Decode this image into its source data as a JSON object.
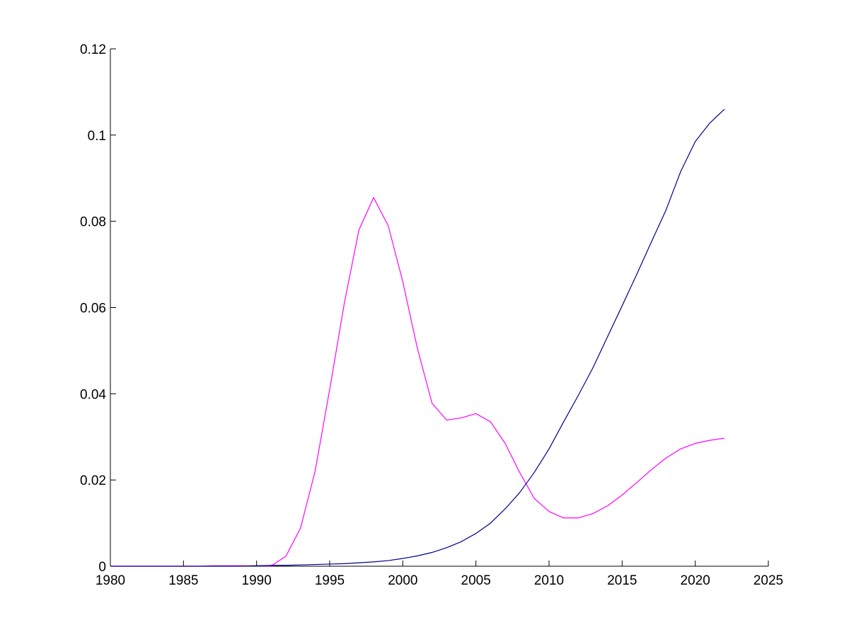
{
  "chart_data": {
    "type": "line",
    "title": "",
    "xlabel": "",
    "ylabel": "",
    "xlim": [
      1980,
      2025
    ],
    "ylim": [
      0,
      0.12
    ],
    "grid": false,
    "legend": "none",
    "x_ticks": [
      1980,
      1985,
      1990,
      1995,
      2000,
      2005,
      2010,
      2015,
      2020,
      2025
    ],
    "y_ticks": [
      0,
      0.02,
      0.04,
      0.06,
      0.08,
      0.1,
      0.12
    ],
    "x_tick_labels": [
      "1980",
      "1985",
      "1990",
      "1995",
      "2000",
      "2005",
      "2010",
      "2015",
      "2020",
      "2025"
    ],
    "y_tick_labels": [
      "0",
      "0.02",
      "0.04",
      "0.06",
      "0.08",
      "0.1",
      "0.12"
    ],
    "x": [
      1980,
      1981,
      1982,
      1983,
      1984,
      1985,
      1986,
      1987,
      1988,
      1989,
      1990,
      1991,
      1992,
      1993,
      1994,
      1995,
      1996,
      1997,
      1998,
      1999,
      2000,
      2001,
      2002,
      2003,
      2004,
      2005,
      2006,
      2007,
      2008,
      2009,
      2010,
      2011,
      2012,
      2013,
      2014,
      2015,
      2016,
      2017,
      2018,
      2019,
      2020,
      2021,
      2022
    ],
    "series": [
      {
        "color": "#ff00ff",
        "values": [
          0,
          0,
          0,
          0,
          0,
          0,
          0,
          0.0001,
          0.0001,
          0.0001,
          0.0001,
          0.0001,
          0.0023,
          0.0088,
          0.022,
          0.041,
          0.061,
          0.078,
          0.0855,
          0.079,
          0.066,
          0.0505,
          0.0378,
          0.0339,
          0.0344,
          0.0354,
          0.0335,
          0.0285,
          0.0217,
          0.0157,
          0.0127,
          0.0112,
          0.0112,
          0.0122,
          0.014,
          0.0165,
          0.0194,
          0.0224,
          0.0251,
          0.0272,
          0.0285,
          0.0292,
          0.0297
        ]
      },
      {
        "color": "#00008b",
        "values": [
          0,
          0,
          0,
          0,
          0,
          0,
          0,
          0,
          0,
          0,
          0.0001,
          0.0002,
          0.0002,
          0.0003,
          0.0004,
          0.0005,
          0.0006,
          0.0008,
          0.001,
          0.0013,
          0.0018,
          0.0024,
          0.0032,
          0.0043,
          0.0057,
          0.0076,
          0.01,
          0.0133,
          0.0171,
          0.0218,
          0.0272,
          0.0335,
          0.0396,
          0.046,
          0.0532,
          0.0604,
          0.0677,
          0.0752,
          0.0826,
          0.0915,
          0.0985,
          0.1028,
          0.106
        ]
      }
    ]
  }
}
